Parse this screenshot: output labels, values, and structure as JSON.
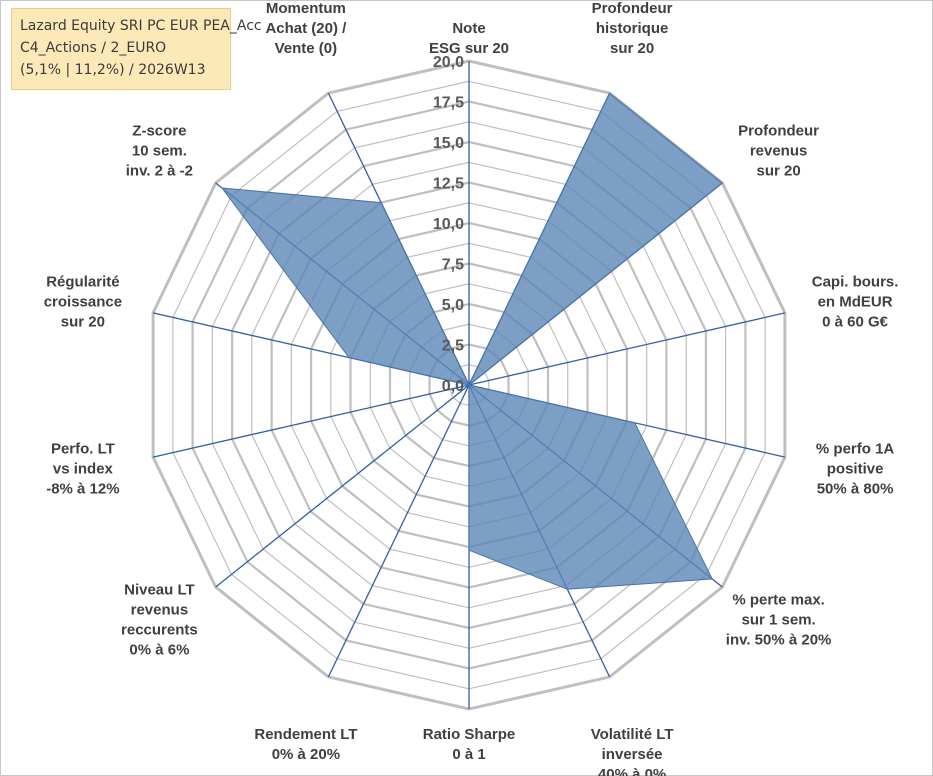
{
  "title_box": {
    "line1": "Lazard Equity SRI PC EUR PEA_Acc",
    "line2": "C4_Actions / 2_EURO",
    "line3": "(5,1% | 11,2%) / 2026W13"
  },
  "chart_data": {
    "type": "radar",
    "rlim": [
      0,
      20
    ],
    "tick_labels": [
      "0,0",
      "2,5",
      "5,0",
      "7,5",
      "10,0",
      "12,5",
      "15,0",
      "17,5",
      "20,0"
    ],
    "grid": true,
    "categories": [
      [
        "Note",
        "ESG sur 20"
      ],
      [
        "Profondeur",
        "historique",
        "sur 20"
      ],
      [
        "Profondeur",
        "revenus",
        "sur 20"
      ],
      [
        "Capi. bours.",
        "en MdEUR",
        "0 à 60 G€"
      ],
      [
        "% perfo 1A",
        "positive",
        "50% à 80%"
      ],
      [
        "% perte max.",
        "sur 1 sem.",
        "inv. 50% à 20%"
      ],
      [
        "Volatilité LT",
        "inversée",
        "40% à 0%"
      ],
      [
        "Ratio Sharpe",
        "0 à 1"
      ],
      [
        "Rendement LT",
        "0% à 20%"
      ],
      [
        "Niveau LT",
        "revenus",
        "reccurents",
        "0% à 6%"
      ],
      [
        "Perfo. LT",
        "vs index",
        "-8% à 12%"
      ],
      [
        "Régularité",
        "croissance",
        "sur 20"
      ],
      [
        "Z-score",
        "10 sem.",
        "inv. 2 à -2"
      ],
      [
        "Momentum",
        "Achat (20) /",
        "Vente (0)"
      ]
    ],
    "values": [
      0,
      20,
      20,
      0,
      10.5,
      19.2,
      14,
      10.2,
      0,
      0,
      0,
      7.6,
      19.5,
      12.5
    ],
    "colors": {
      "fill": "#5c87b7",
      "fill_opacity": 0.8,
      "outline": "#4a74a6",
      "grid": "#bfbfbf",
      "axis": "#2e5fa6"
    }
  }
}
